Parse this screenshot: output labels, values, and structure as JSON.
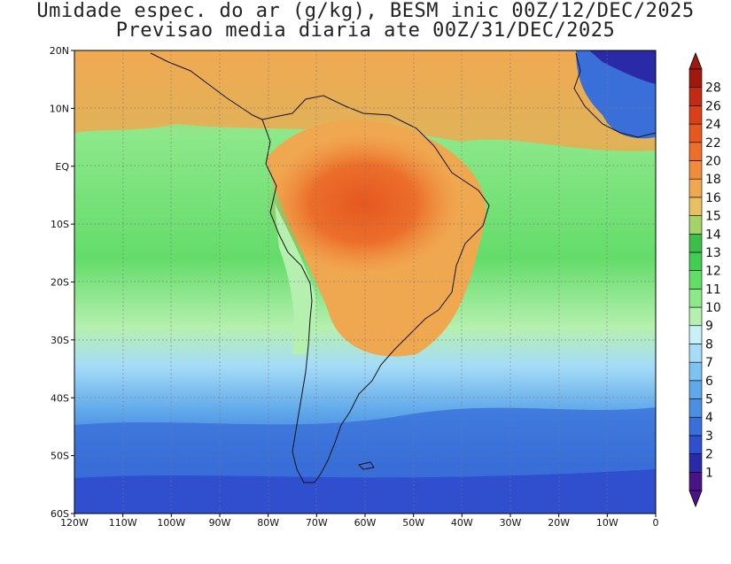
{
  "title": {
    "line1": "Umidade espec. do ar (g/kg), BESM inic 00Z/12/DEC/2025",
    "line2": "Previsao media diaria ate 00Z/31/DEC/2025"
  },
  "map": {
    "lat_range": [
      -60,
      20
    ],
    "lon_range": [
      -120,
      0
    ],
    "lat_ticks": [
      "20N",
      "10N",
      "EQ",
      "10S",
      "20S",
      "30S",
      "40S",
      "50S",
      "60S"
    ],
    "lon_ticks": [
      "120W",
      "110W",
      "100W",
      "90W",
      "80W",
      "70W",
      "60W",
      "50W",
      "40W",
      "30W",
      "20W",
      "10W",
      "0"
    ]
  },
  "colorbar": {
    "labels": [
      "1",
      "2",
      "3",
      "4",
      "5",
      "6",
      "7",
      "8",
      "9",
      "10",
      "11",
      "12",
      "13",
      "14",
      "15",
      "16",
      "18",
      "20",
      "22",
      "24",
      "26",
      "28"
    ],
    "colors": [
      "#4a1486",
      "#2a2aa8",
      "#2f4fcf",
      "#3a6fd9",
      "#4a8fe0",
      "#5fa8ea",
      "#7ec2f2",
      "#a6dcf7",
      "#c9f0f8",
      "#b6f0b0",
      "#8de88a",
      "#64dc6a",
      "#43cc54",
      "#3cbf4a",
      "#a5d36a",
      "#e8c064",
      "#f0a850",
      "#ef8c3c",
      "#ec6e2a",
      "#e55820",
      "#d8401a",
      "#c22a14",
      "#a01810"
    ]
  }
}
